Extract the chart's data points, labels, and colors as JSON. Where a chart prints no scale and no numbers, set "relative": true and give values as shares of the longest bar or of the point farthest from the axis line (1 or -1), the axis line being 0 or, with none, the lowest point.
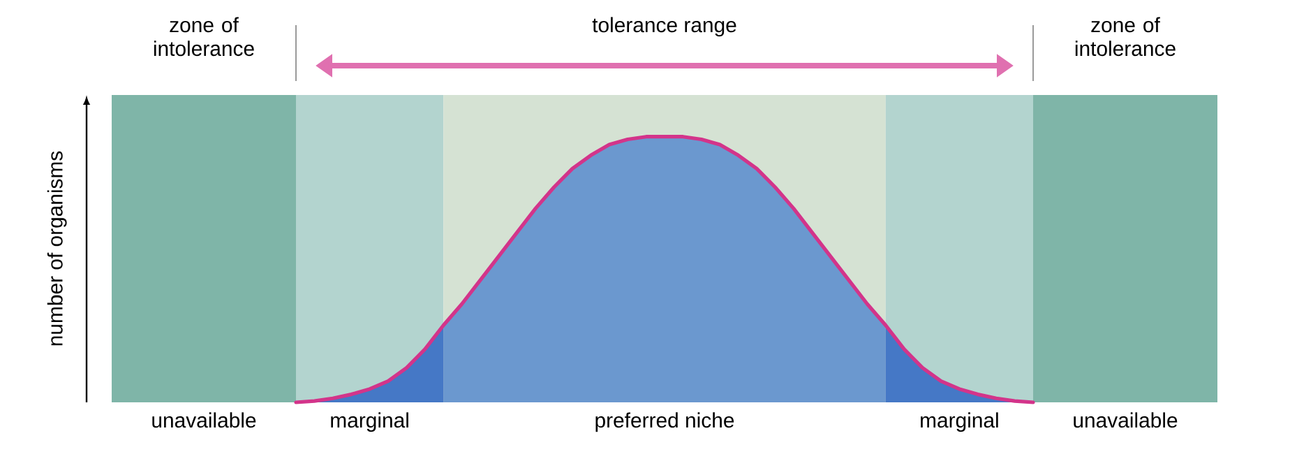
{
  "chart_data": {
    "type": "area",
    "relative": true,
    "ylabel": "number of organisms",
    "categories": [
      null,
      null,
      null,
      null,
      null,
      "unavailable",
      null,
      null,
      null,
      null,
      null,
      null,
      null,
      null,
      "marginal",
      null,
      null,
      null,
      null,
      null,
      null,
      null,
      null,
      null,
      null,
      null,
      null,
      null,
      null,
      null,
      "preferred niche",
      null,
      null,
      null,
      null,
      null,
      null,
      null,
      null,
      null,
      null,
      null,
      null,
      null,
      null,
      null,
      "marginal",
      null,
      null,
      null,
      null,
      null,
      null,
      null,
      null,
      "unavailable",
      null,
      null,
      null,
      null,
      null
    ],
    "series": [
      {
        "color": "#6b98cf",
        "values": [
          null,
          null,
          null,
          null,
          null,
          null,
          null,
          null,
          null,
          null,
          null,
          null,
          null,
          null,
          null,
          null,
          null,
          null,
          0.29,
          0.37,
          0.46,
          0.55,
          0.64,
          0.73,
          0.81,
          0.88,
          0.93,
          0.97,
          0.99,
          1,
          1,
          1,
          0.99,
          0.97,
          0.93,
          0.88,
          0.81,
          0.73,
          0.64,
          0.55,
          0.46,
          0.37,
          0.29,
          null,
          null,
          null,
          null,
          null,
          null,
          null,
          null,
          null,
          null,
          null,
          null,
          null,
          null,
          null,
          null,
          null,
          null
        ]
      },
      {
        "color": "#4578c6",
        "values": [
          null,
          null,
          null,
          null,
          null,
          null,
          null,
          null,
          null,
          null,
          0,
          0.005,
          0.015,
          0.03,
          0.05,
          0.08,
          0.13,
          0.2,
          0.29,
          null,
          null,
          null,
          null,
          null,
          null,
          null,
          null,
          null,
          null,
          null,
          null,
          null,
          null,
          null,
          null,
          null,
          null,
          null,
          null,
          null,
          null,
          null,
          0.29,
          0.2,
          0.13,
          0.08,
          0.05,
          0.03,
          0.015,
          0.005,
          0,
          null,
          null,
          null,
          null,
          null,
          null,
          null,
          null,
          null,
          null
        ]
      },
      {
        "type": "line",
        "color": "#d3348a",
        "line_style": "solid",
        "values": [
          null,
          null,
          null,
          null,
          null,
          null,
          null,
          null,
          null,
          null,
          0,
          0.005,
          0.015,
          0.03,
          0.05,
          0.08,
          0.13,
          0.2,
          0.29,
          0.37,
          0.46,
          0.55,
          0.64,
          0.73,
          0.81,
          0.88,
          0.93,
          0.97,
          0.99,
          1,
          1,
          1,
          0.99,
          0.97,
          0.93,
          0.88,
          0.81,
          0.73,
          0.64,
          0.55,
          0.46,
          0.37,
          0.29,
          0.2,
          0.13,
          0.08,
          0.05,
          0.03,
          0.015,
          0.005,
          0,
          null,
          null,
          null,
          null,
          null,
          null,
          null,
          null,
          null,
          null
        ]
      }
    ],
    "annotations": [
      "zone of intolerance",
      "tolerance range",
      "zone of intolerance"
    ],
    "marker": "none"
  }
}
